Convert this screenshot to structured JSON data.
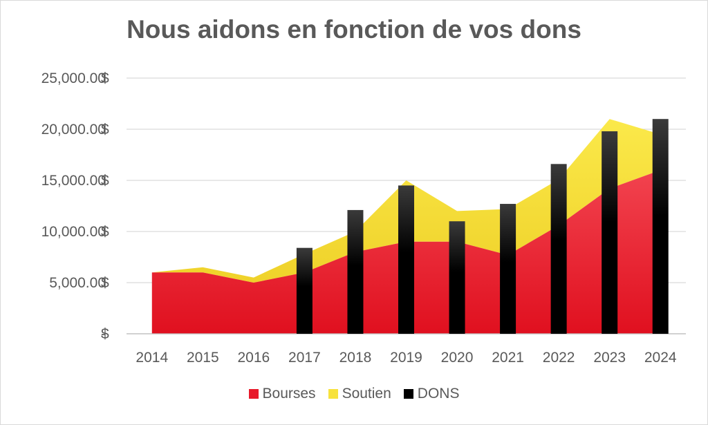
{
  "chart_data": {
    "type": "area",
    "title": "Nous aidons en fonction de vos dons",
    "x": [
      "2014",
      "2015",
      "2016",
      "2017",
      "2018",
      "2019",
      "2020",
      "2021",
      "2022",
      "2023",
      "2024"
    ],
    "series": [
      {
        "name": "Bourses",
        "kind": "stacked-area",
        "color": "#e8192a",
        "values": [
          6000,
          6000,
          5000,
          6000,
          8000,
          9000,
          9000,
          7700,
          10600,
          14200,
          16000
        ]
      },
      {
        "name": "Soutien",
        "kind": "stacked-area",
        "color": "#f7e23c",
        "values": [
          0,
          500,
          500,
          1800,
          2000,
          6000,
          3000,
          4500,
          4500,
          6800,
          3500
        ]
      },
      {
        "name": "DONS",
        "kind": "bar",
        "color": "#000000",
        "values": [
          null,
          null,
          null,
          8400,
          12100,
          14500,
          11000,
          12700,
          16600,
          19800,
          21000
        ]
      }
    ],
    "y_ticks": [
      "-   $",
      "5,000.00  $",
      "10,000.00  $",
      "15,000.00  $",
      "20,000.00  $",
      "25,000.00  $"
    ],
    "ylim": [
      0,
      25000
    ],
    "grid": true,
    "legend": "bottom"
  }
}
